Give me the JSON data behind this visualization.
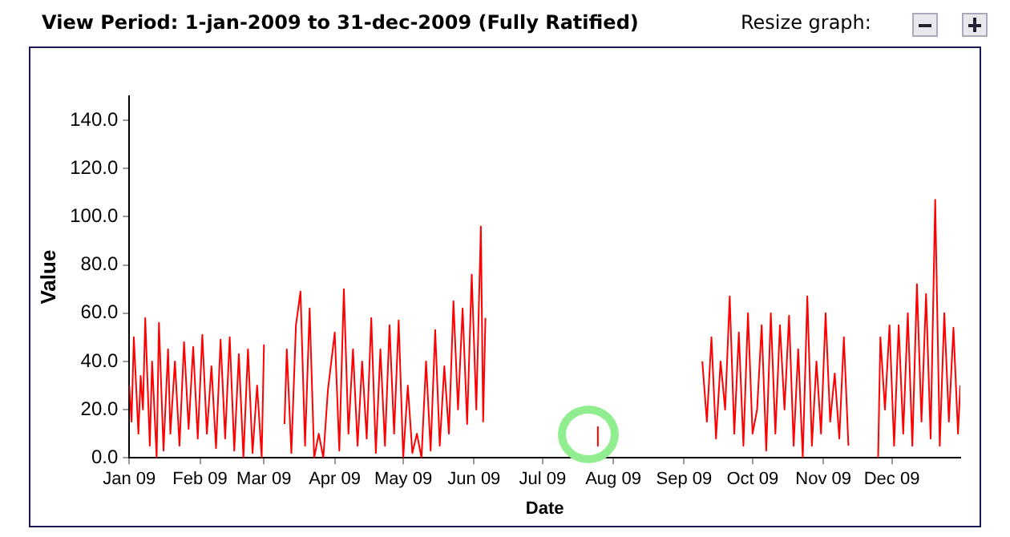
{
  "chart_data": {
    "type": "line",
    "title": "View Period: 1-jan-2009 to 31-dec-2009 (Fully Ratified)",
    "xlabel": "Date",
    "ylabel": "Value",
    "annotations": [
      "Resize graph:"
    ],
    "x": [
      "2009-01-01",
      "2009-01-02",
      "2009-01-03",
      "2009-01-05",
      "2009-01-06",
      "2009-01-07",
      "2009-01-08",
      "2009-01-10",
      "2009-01-11",
      "2009-01-13",
      "2009-01-14",
      "2009-01-16",
      "2009-01-18",
      "2009-01-19",
      "2009-01-21",
      "2009-01-23",
      "2009-01-25",
      "2009-01-27",
      "2009-01-29",
      "2009-01-31",
      "2009-02-02",
      "2009-02-04",
      "2009-02-06",
      "2009-02-08",
      "2009-02-10",
      "2009-02-12",
      "2009-02-14",
      "2009-02-16",
      "2009-02-18",
      "2009-02-20",
      "2009-02-22",
      "2009-02-24",
      "2009-02-26",
      "2009-02-28",
      "2009-03-01",
      "2009-03-02",
      "2009-03-10",
      "2009-03-11",
      "2009-03-13",
      "2009-03-15",
      "2009-03-17",
      "2009-03-19",
      "2009-03-21",
      "2009-03-23",
      "2009-03-25",
      "2009-03-27",
      "2009-03-29",
      "2009-04-01",
      "2009-04-03",
      "2009-04-05",
      "2009-04-07",
      "2009-04-09",
      "2009-04-11",
      "2009-04-13",
      "2009-04-15",
      "2009-04-17",
      "2009-04-19",
      "2009-04-21",
      "2009-04-23",
      "2009-04-25",
      "2009-04-27",
      "2009-04-29",
      "2009-05-01",
      "2009-05-03",
      "2009-05-05",
      "2009-05-07",
      "2009-05-09",
      "2009-05-11",
      "2009-05-13",
      "2009-05-15",
      "2009-05-17",
      "2009-05-19",
      "2009-05-21",
      "2009-05-23",
      "2009-05-25",
      "2009-05-27",
      "2009-05-29",
      "2009-05-31",
      "2009-06-02",
      "2009-06-04",
      "2009-06-05",
      "2009-06-06",
      "2009-06-07",
      "2009-07-25",
      "2009-07-25T06:00",
      "2009-07-26",
      "2009-09-09",
      "2009-09-11",
      "2009-09-13",
      "2009-09-15",
      "2009-09-17",
      "2009-09-19",
      "2009-09-21",
      "2009-09-23",
      "2009-09-25",
      "2009-09-27",
      "2009-09-29",
      "2009-10-01",
      "2009-10-03",
      "2009-10-05",
      "2009-10-07",
      "2009-10-09",
      "2009-10-11",
      "2009-10-13",
      "2009-10-15",
      "2009-10-17",
      "2009-10-19",
      "2009-10-21",
      "2009-10-23",
      "2009-10-25",
      "2009-10-27",
      "2009-10-29",
      "2009-10-31",
      "2009-11-02",
      "2009-11-04",
      "2009-11-06",
      "2009-11-08",
      "2009-11-10",
      "2009-11-12",
      "2009-11-13",
      "2009-11-25",
      "2009-11-26",
      "2009-11-28",
      "2009-11-30",
      "2009-12-02",
      "2009-12-04",
      "2009-12-06",
      "2009-12-08",
      "2009-12-10",
      "2009-12-12",
      "2009-12-14",
      "2009-12-16",
      "2009-12-18",
      "2009-12-20",
      "2009-12-22",
      "2009-12-24",
      "2009-12-26",
      "2009-12-28",
      "2009-12-30",
      "2009-12-31"
    ],
    "series": [
      {
        "color": "#ff0000",
        "values": [
          30,
          15,
          50,
          10,
          34,
          20,
          58,
          5,
          40,
          0,
          56,
          3,
          45,
          10,
          40,
          5,
          48,
          12,
          46,
          8,
          51,
          10,
          38,
          4,
          49,
          8,
          50,
          3,
          43,
          0,
          45,
          2,
          30,
          0,
          47,
          null,
          14,
          45,
          2,
          55,
          69,
          5,
          62,
          0,
          10,
          0,
          28,
          52,
          3,
          70,
          10,
          45,
          5,
          40,
          8,
          58,
          2,
          45,
          5,
          55,
          10,
          57,
          0,
          30,
          2,
          10,
          0,
          40,
          3,
          53,
          5,
          38,
          10,
          65,
          20,
          62,
          14,
          76,
          20,
          96,
          15,
          58,
          null,
          5,
          13,
          null,
          40,
          15,
          50,
          8,
          40,
          20,
          67,
          10,
          52,
          5,
          60,
          10,
          20,
          55,
          3,
          60,
          10,
          55,
          20,
          59,
          5,
          45,
          0,
          67,
          5,
          40,
          10,
          60,
          15,
          35,
          8,
          50,
          5,
          null,
          0,
          50,
          20,
          55,
          5,
          55,
          10,
          60,
          5,
          72,
          15,
          68,
          8,
          107,
          5,
          60,
          15,
          54,
          10,
          30
        ]
      }
    ],
    "xlim": [
      "2009-01-01",
      "2009-12-31"
    ],
    "xticks": [
      {
        "value": "2009-01-01",
        "label": "Jan 09"
      },
      {
        "value": "2009-02-01",
        "label": "Feb 09"
      },
      {
        "value": "2009-03-01",
        "label": "Mar 09"
      },
      {
        "value": "2009-04-01",
        "label": "Apr 09"
      },
      {
        "value": "2009-05-01",
        "label": "May 09"
      },
      {
        "value": "2009-06-01",
        "label": "Jun 09"
      },
      {
        "value": "2009-07-01",
        "label": "Jul 09"
      },
      {
        "value": "2009-08-01",
        "label": "Aug 09"
      },
      {
        "value": "2009-09-01",
        "label": "Sep 09"
      },
      {
        "value": "2009-10-01",
        "label": "Oct 09"
      },
      {
        "value": "2009-11-01",
        "label": "Nov 09"
      },
      {
        "value": "2009-12-01",
        "label": "Dec 09"
      }
    ],
    "ylim": [
      0,
      150
    ],
    "yticks": [
      {
        "value": 0,
        "label": "0.0"
      },
      {
        "value": 20,
        "label": "20.0"
      },
      {
        "value": 40,
        "label": "40.0"
      },
      {
        "value": 60,
        "label": "60.0"
      },
      {
        "value": 80,
        "label": "80.0"
      },
      {
        "value": 100,
        "label": "100.0"
      },
      {
        "value": 120,
        "label": "120.0"
      },
      {
        "value": 140,
        "label": "140.0"
      }
    ],
    "grid": false,
    "legend": false,
    "marker": "none",
    "line_style": "solid"
  }
}
